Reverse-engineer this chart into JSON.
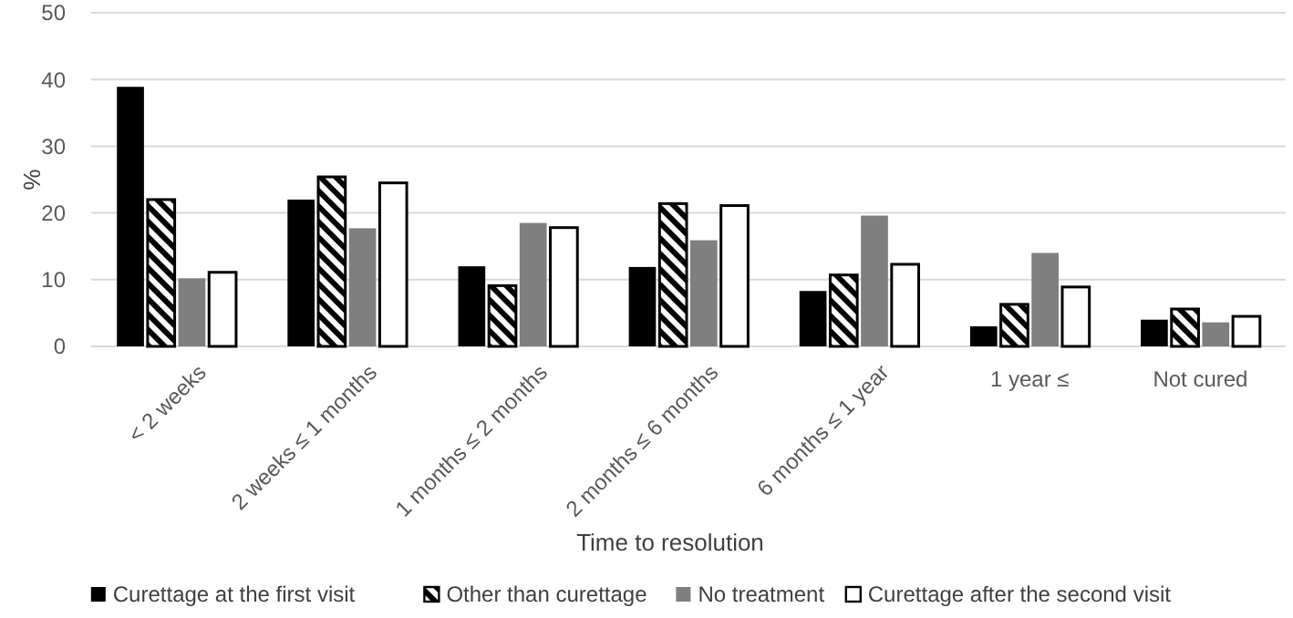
{
  "chart_data": {
    "type": "bar",
    "xlabel": "Time to resolution",
    "ylabel": "%",
    "categories": [
      "< 2 weeks",
      "2 weeks ≤ 1 months",
      "1 months ≤ 2 months",
      "2 months ≤ 6 months",
      "6 months ≤ 1 year",
      "1 year ≤",
      "Not cured"
    ],
    "series": [
      {
        "name": "Curettage at the first visit",
        "color": "#000000",
        "values": [
          38.9,
          22.0,
          12.0,
          11.9,
          8.3,
          3.0,
          4.0
        ]
      },
      {
        "name": "Other than curettage",
        "color": "#000000",
        "values": [
          22.0,
          25.4,
          9.1,
          21.4,
          10.7,
          6.3,
          5.6
        ]
      },
      {
        "name": "No treatment",
        "color": "#7f7f7f",
        "values": [
          10.2,
          17.7,
          18.5,
          15.9,
          19.6,
          14.0,
          3.6
        ]
      },
      {
        "name": "Curettage after the second visit",
        "color": "#ffffff",
        "values": [
          11.1,
          24.5,
          17.8,
          21.1,
          12.3,
          8.9,
          4.5
        ]
      }
    ],
    "ylim": [
      0,
      50
    ],
    "yticks": [
      0,
      10,
      20,
      30,
      40,
      50
    ],
    "grid": "y",
    "legend": "bottom"
  }
}
